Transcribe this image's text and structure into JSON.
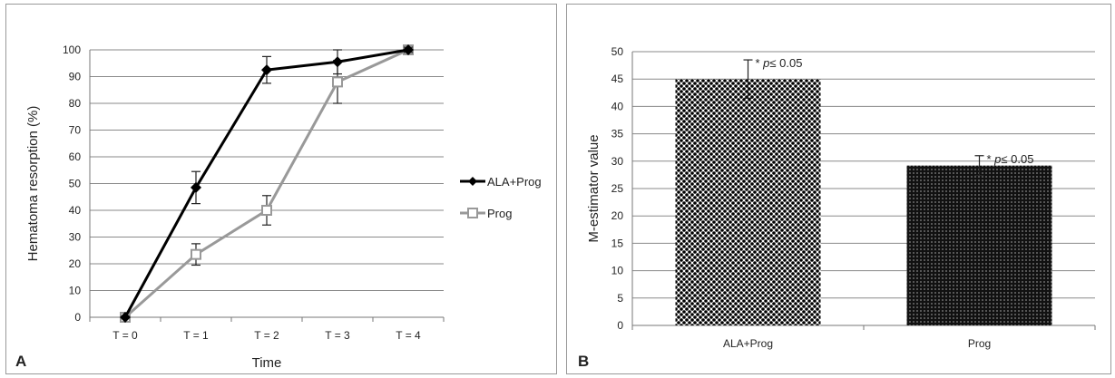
{
  "panels": [
    {
      "letter": "A"
    },
    {
      "letter": "B"
    }
  ],
  "chart_data": [
    {
      "type": "line",
      "title": "",
      "xlabel": "Time",
      "ylabel": "Hematoma resorption (%)",
      "categories": [
        "T = 0",
        "T = 1",
        "T = 2",
        "T = 3",
        "T = 4"
      ],
      "ylim": [
        0,
        100
      ],
      "yticks": [
        0,
        10,
        20,
        30,
        40,
        50,
        60,
        70,
        80,
        90,
        100
      ],
      "grid": true,
      "legend_position": "right",
      "series": [
        {
          "name": "ALA+Prog",
          "values": [
            0,
            48.5,
            92.5,
            95.5,
            100
          ],
          "errors": [
            0,
            6,
            5,
            4.5,
            1
          ],
          "color": "#000000",
          "marker": "diamond-filled"
        },
        {
          "name": "Prog",
          "values": [
            0,
            23.5,
            40,
            88,
            100
          ],
          "errors": [
            0,
            4,
            5.5,
            8,
            1
          ],
          "color": "#999999",
          "marker": "square-open"
        }
      ]
    },
    {
      "type": "bar",
      "title": "",
      "xlabel": "",
      "ylabel": "M-estimator value",
      "categories": [
        "ALA+Prog",
        "Prog"
      ],
      "values": [
        45,
        29.2
      ],
      "errors": [
        3.5,
        1.8
      ],
      "ylim": [
        0,
        50
      ],
      "yticks": [
        0,
        5,
        10,
        15,
        20,
        25,
        30,
        35,
        40,
        45,
        50
      ],
      "grid": true,
      "annotations": [
        {
          "prefix": "* ",
          "italic": "p",
          "suffix": "≤ 0.05"
        },
        {
          "prefix": "* ",
          "italic": "p",
          "suffix": "≤ 0.05"
        }
      ],
      "bar_fill": [
        "dotted-light",
        "dotted-dark"
      ]
    }
  ]
}
